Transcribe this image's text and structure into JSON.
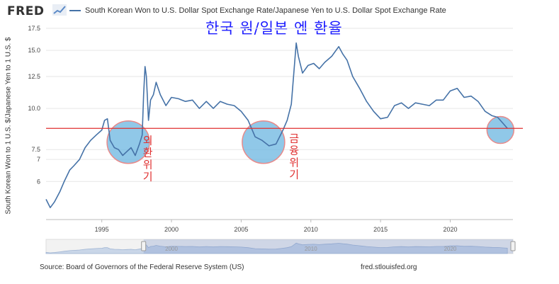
{
  "header": {
    "logo_text": "FRED",
    "legend_label": "South Korean Won to U.S. Dollar Spot Exchange Rate/Japanese Yen to U.S. Dollar Spot Exchange Rate",
    "series_color": "#4572a7"
  },
  "annotation": {
    "title": "한국 원/일본 엔 환율",
    "crisis1": [
      "외",
      "환",
      "위",
      "기"
    ],
    "crisis2": [
      "금",
      "융",
      "위",
      "기"
    ],
    "title_color": "#1a1aff",
    "note_color": "#e03030",
    "reference_line_color": "#e03030",
    "highlight_color": "#6bb6e0"
  },
  "footer": {
    "source": "Source: Board of Governors of the Federal Reserve System (US)",
    "site": "fred.stlouisfed.org"
  },
  "chart_data": {
    "type": "line",
    "ylabel": "South Korean Won to 1 U.S. $/Japanese Yen to 1 U.S. $",
    "yscale": "log",
    "ylim": [
      4.6,
      17.5
    ],
    "xlim": [
      1991.0,
      2024.5
    ],
    "y_ticks": [
      6,
      7,
      7.5,
      10.0,
      12.5,
      15.0,
      17.5
    ],
    "y_tick_labels": [
      "6",
      "7",
      "7.5",
      "10.0",
      "12.5",
      "15.0",
      "17.5"
    ],
    "x_ticks": [
      1995,
      2000,
      2005,
      2010,
      2015,
      2020
    ],
    "x_tick_labels": [
      "1995",
      "2000",
      "2005",
      "2010",
      "2015",
      "2020"
    ],
    "grid": "horizontal",
    "reference_line": 8.7,
    "highlights": [
      {
        "x": 1996.9,
        "y": 7.9
      },
      {
        "x": 2006.6,
        "y": 7.9
      },
      {
        "x": 2023.6,
        "y": 8.6
      }
    ],
    "notes": [
      {
        "x": 1998.3,
        "y": 7.8
      },
      {
        "x": 2008.8,
        "y": 7.9
      }
    ],
    "navigator_labels": [
      "2000",
      "2010",
      "2020"
    ],
    "series": [
      {
        "x": [
          1991.0,
          1991.3,
          1991.6,
          1992.0,
          1992.3,
          1992.7,
          1993.0,
          1993.4,
          1993.8,
          1994.2,
          1994.6,
          1995.0,
          1995.2,
          1995.4,
          1995.6,
          1995.9,
          1996.2,
          1996.5,
          1996.8,
          1997.1,
          1997.4,
          1997.7,
          1997.9,
          1998.0,
          1998.1,
          1998.2,
          1998.35,
          1998.5,
          1998.7,
          1998.9,
          1999.2,
          1999.6,
          2000.0,
          2000.5,
          2001.0,
          2001.5,
          2002.0,
          2002.5,
          2003.0,
          2003.5,
          2004.0,
          2004.5,
          2005.0,
          2005.5,
          2006.0,
          2006.5,
          2007.0,
          2007.5,
          2008.0,
          2008.3,
          2008.6,
          2008.8,
          2008.95,
          2009.1,
          2009.4,
          2009.8,
          2010.2,
          2010.6,
          2011.0,
          2011.5,
          2012.0,
          2012.3,
          2012.6,
          2013.0,
          2013.5,
          2014.0,
          2014.5,
          2015.0,
          2015.5,
          2016.0,
          2016.5,
          2017.0,
          2017.5,
          2018.0,
          2018.5,
          2019.0,
          2019.5,
          2020.0,
          2020.5,
          2021.0,
          2021.5,
          2022.0,
          2022.5,
          2023.0,
          2023.4,
          2023.8,
          2024.1
        ],
        "values": [
          5.3,
          5.0,
          5.2,
          5.6,
          6.0,
          6.5,
          6.7,
          7.0,
          7.6,
          8.0,
          8.3,
          8.6,
          9.2,
          9.3,
          8.0,
          7.6,
          7.5,
          7.2,
          7.4,
          7.6,
          7.2,
          7.8,
          8.3,
          11.0,
          13.4,
          12.5,
          9.2,
          10.6,
          11.0,
          12.0,
          11.0,
          10.2,
          10.8,
          10.7,
          10.5,
          10.6,
          10.0,
          10.5,
          10.0,
          10.5,
          10.3,
          10.2,
          9.8,
          9.2,
          8.2,
          8.0,
          7.7,
          7.8,
          8.6,
          9.2,
          10.3,
          13.2,
          15.8,
          14.4,
          12.8,
          13.5,
          13.7,
          13.2,
          13.8,
          14.4,
          15.4,
          14.6,
          14.0,
          12.5,
          11.5,
          10.5,
          9.8,
          9.3,
          9.4,
          10.2,
          10.4,
          10.0,
          10.4,
          10.3,
          10.2,
          10.6,
          10.6,
          11.3,
          11.5,
          10.8,
          10.9,
          10.5,
          9.8,
          9.5,
          9.4,
          9.0,
          8.7
        ]
      }
    ]
  }
}
